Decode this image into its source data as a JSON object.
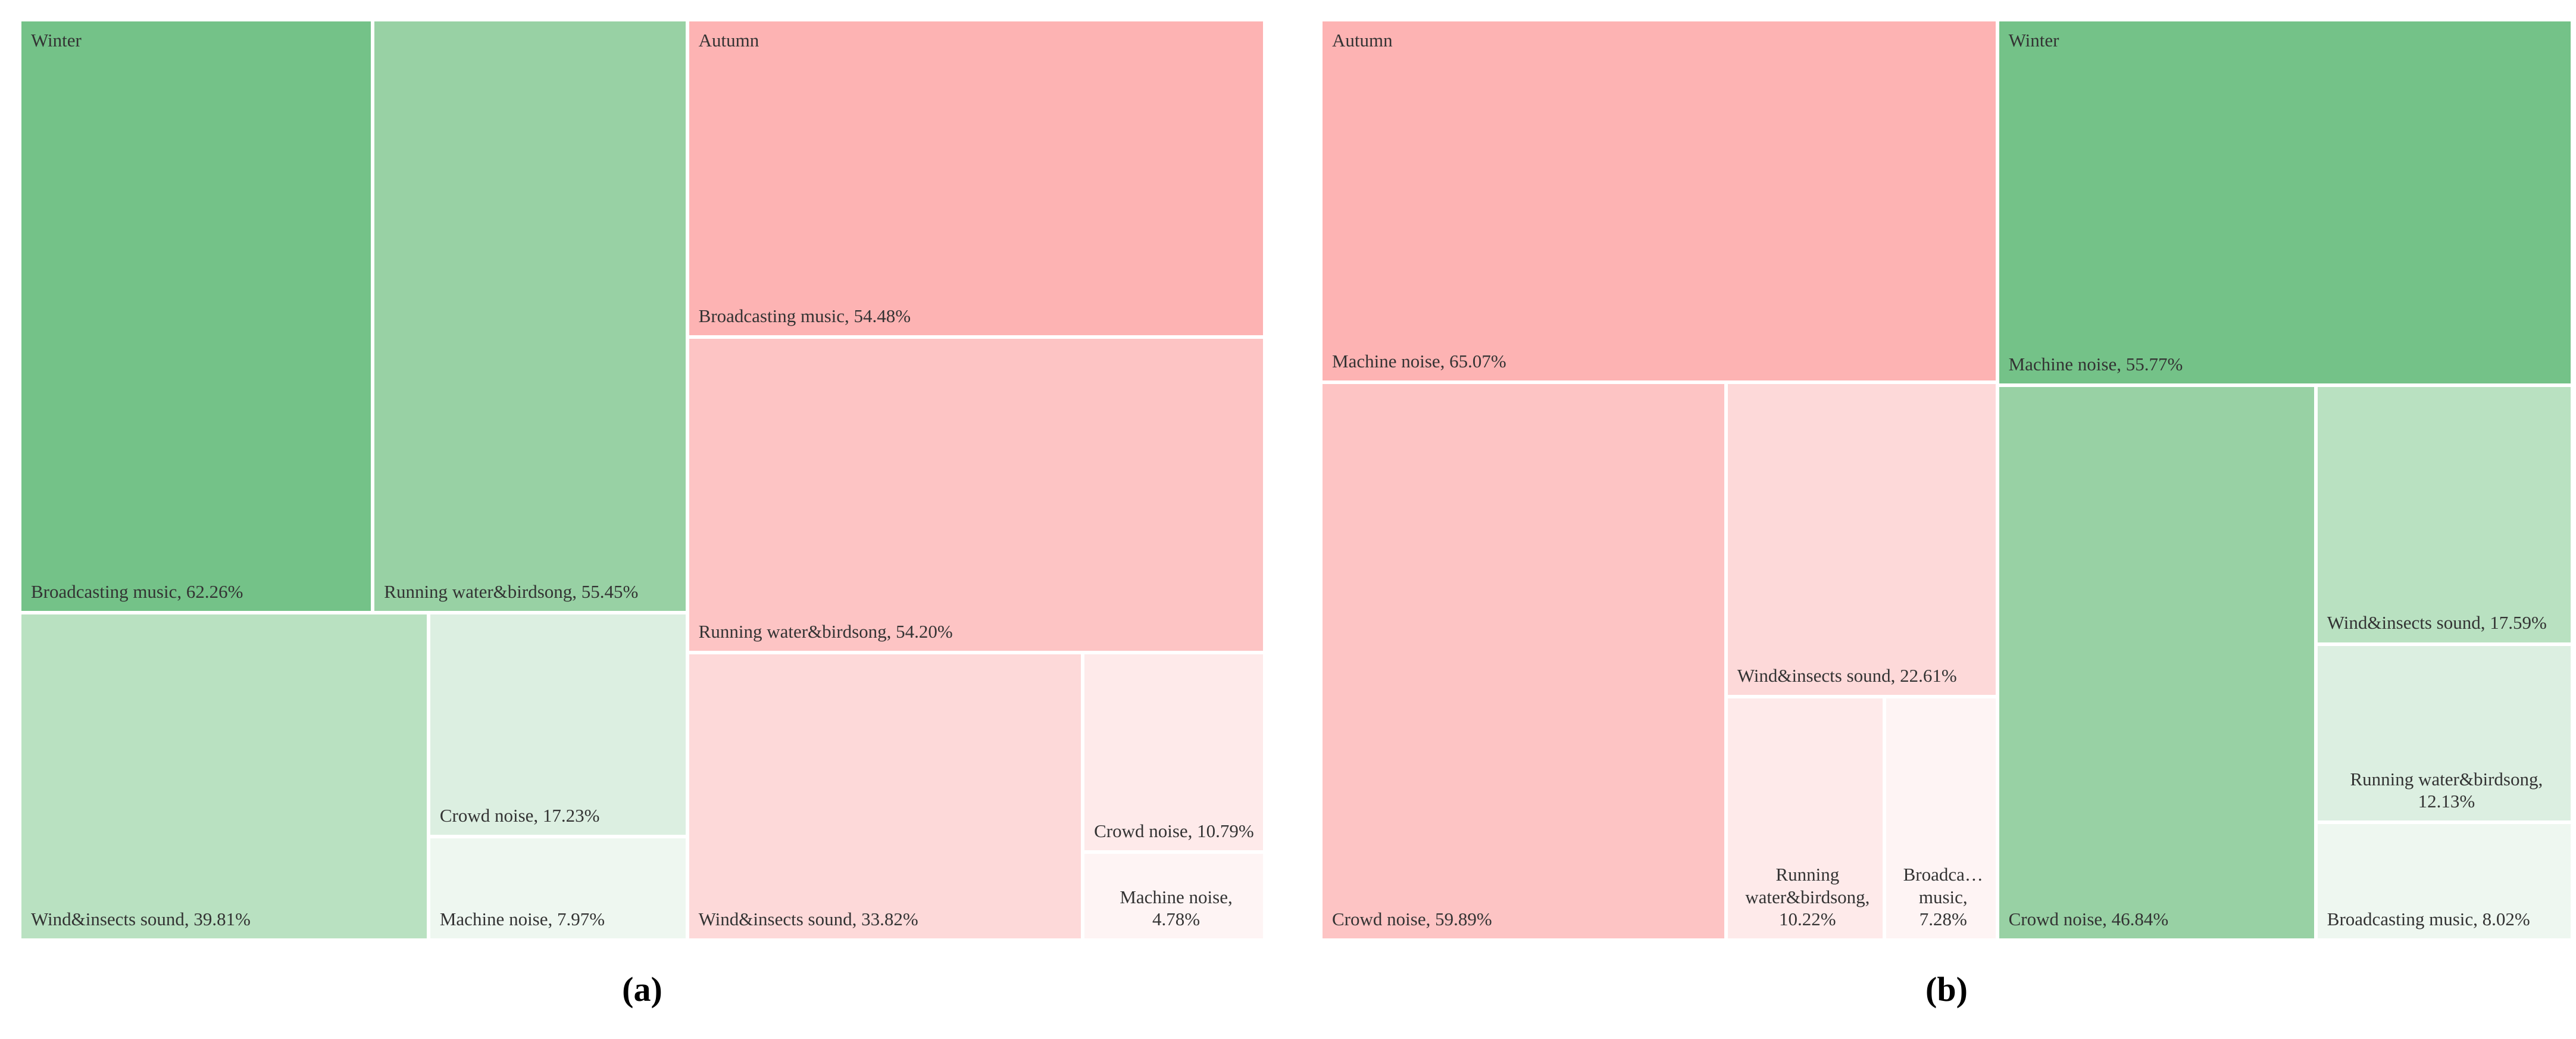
{
  "chart_data": [
    {
      "type": "treemap",
      "caption": "(a)",
      "groups": [
        {
          "name": "Winter",
          "items": [
            {
              "label": "Broadcasting music, 62.26%",
              "value": 62.26,
              "color": "#74c288"
            },
            {
              "label": "Running water&birdsong, 55.45%",
              "value": 55.45,
              "color": "#98d1a4"
            },
            {
              "label": "Wind&insects sound, 39.81%",
              "value": 39.81,
              "color": "#b9e1c1"
            },
            {
              "label": "Crowd noise, 17.23%",
              "value": 17.23,
              "color": "#dcefe1"
            },
            {
              "label": "Machine noise, 7.97%",
              "value": 7.97,
              "color": "#eef7f0"
            }
          ]
        },
        {
          "name": "Autumn",
          "items": [
            {
              "label": "Broadcasting music, 54.48%",
              "value": 54.48,
              "color": "#fdb3b3"
            },
            {
              "label": "Running water&birdsong, 54.20%",
              "value": 54.2,
              "color": "#fdc4c4"
            },
            {
              "label": "Wind&insects sound, 33.82%",
              "value": 33.82,
              "color": "#fdd9d9"
            },
            {
              "label": "Crowd noise, 10.79%",
              "value": 10.79,
              "color": "#feeaea"
            },
            {
              "label": "Machine noise, 4.78%",
              "value": 4.78,
              "color": "#fef4f4"
            }
          ]
        }
      ]
    },
    {
      "type": "treemap",
      "caption": "(b)",
      "groups": [
        {
          "name": "Autumn",
          "items": [
            {
              "label": "Machine noise, 65.07%",
              "value": 65.07,
              "color": "#fdb3b3"
            },
            {
              "label": "Crowd noise, 59.89%",
              "value": 59.89,
              "color": "#fdc4c4"
            },
            {
              "label": "Wind&insects sound, 22.61%",
              "value": 22.61,
              "color": "#fdd9d9"
            },
            {
              "label": "Running water&birdsong, 10.22%",
              "value": 10.22,
              "color": "#feeaea"
            },
            {
              "label": "Broadca… music, 7.28%",
              "value": 7.28,
              "color": "#fef4f4"
            }
          ]
        },
        {
          "name": "Winter",
          "items": [
            {
              "label": "Machine noise, 55.77%",
              "value": 55.77,
              "color": "#74c288"
            },
            {
              "label": "Crowd noise, 46.84%",
              "value": 46.84,
              "color": "#98d1a4"
            },
            {
              "label": "Wind&insects sound, 17.59%",
              "value": 17.59,
              "color": "#b9e1c1"
            },
            {
              "label": "Running water&birdsong, 12.13%",
              "value": 12.13,
              "color": "#dcefe1"
            },
            {
              "label": "Broadcasting music, 8.02%",
              "value": 8.02,
              "color": "#eef7f0"
            }
          ]
        }
      ]
    }
  ]
}
